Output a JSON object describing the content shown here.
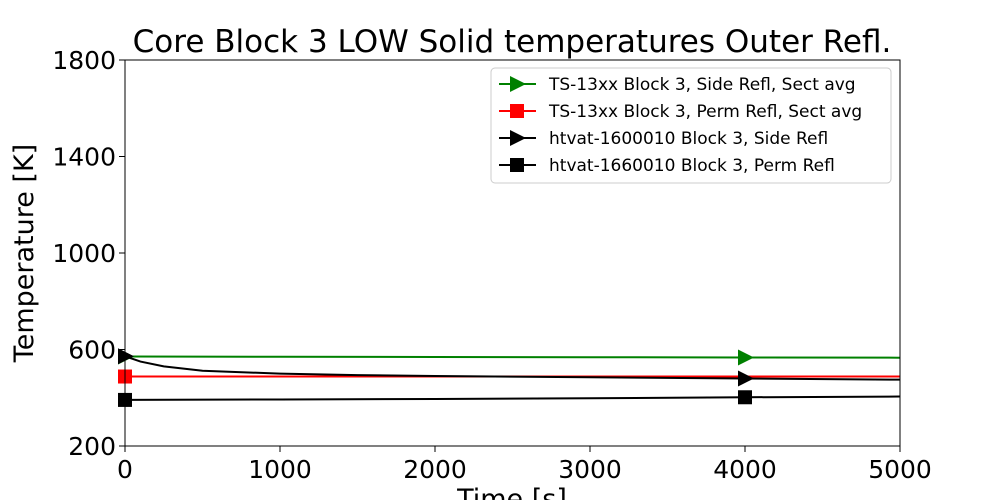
{
  "chart_data": {
    "type": "line",
    "title": "Core Block 3 LOW Solid temperatures Outer Refl.",
    "xlabel": "Time [s]",
    "ylabel": "Temperature [K]",
    "xlim": [
      0,
      5000
    ],
    "ylim": [
      200,
      1800
    ],
    "xticks": [
      0,
      1000,
      2000,
      3000,
      4000,
      5000
    ],
    "yticks": [
      200,
      600,
      1000,
      1400,
      1800
    ],
    "grid": false,
    "legend_position": "top-right",
    "series": [
      {
        "name": "TS-13xx Block 3, Side Refl, Sect avg",
        "color": "#008000",
        "marker": "triangle-right",
        "marker_x": [
          0,
          4000
        ],
        "x": [
          0,
          1000,
          2000,
          3000,
          4000,
          5000
        ],
        "y": [
          571,
          570,
          569,
          568,
          567,
          566
        ]
      },
      {
        "name": "TS-13xx Block 3, Perm Refl, Sect avg",
        "color": "#ff0000",
        "marker": "square",
        "marker_x": [
          0
        ],
        "x": [
          0,
          1000,
          2000,
          3000,
          4000,
          5000
        ],
        "y": [
          488,
          488,
          488,
          488,
          488,
          488
        ]
      },
      {
        "name": "htvat-1600010 Block 3, Side Refl",
        "color": "#000000",
        "marker": "triangle-right",
        "marker_x": [
          0,
          4000
        ],
        "x": [
          0,
          100,
          250,
          500,
          1000,
          1500,
          2000,
          3000,
          4000,
          5000
        ],
        "y": [
          572,
          550,
          530,
          512,
          500,
          494,
          490,
          485,
          480,
          475
        ]
      },
      {
        "name": "htvat-1660010 Block 3, Perm Refl",
        "color": "#000000",
        "marker": "square",
        "marker_x": [
          0,
          4000
        ],
        "x": [
          0,
          1000,
          2000,
          3000,
          4000,
          5000
        ],
        "y": [
          391,
          393,
          395,
          398,
          402,
          405
        ]
      }
    ]
  }
}
